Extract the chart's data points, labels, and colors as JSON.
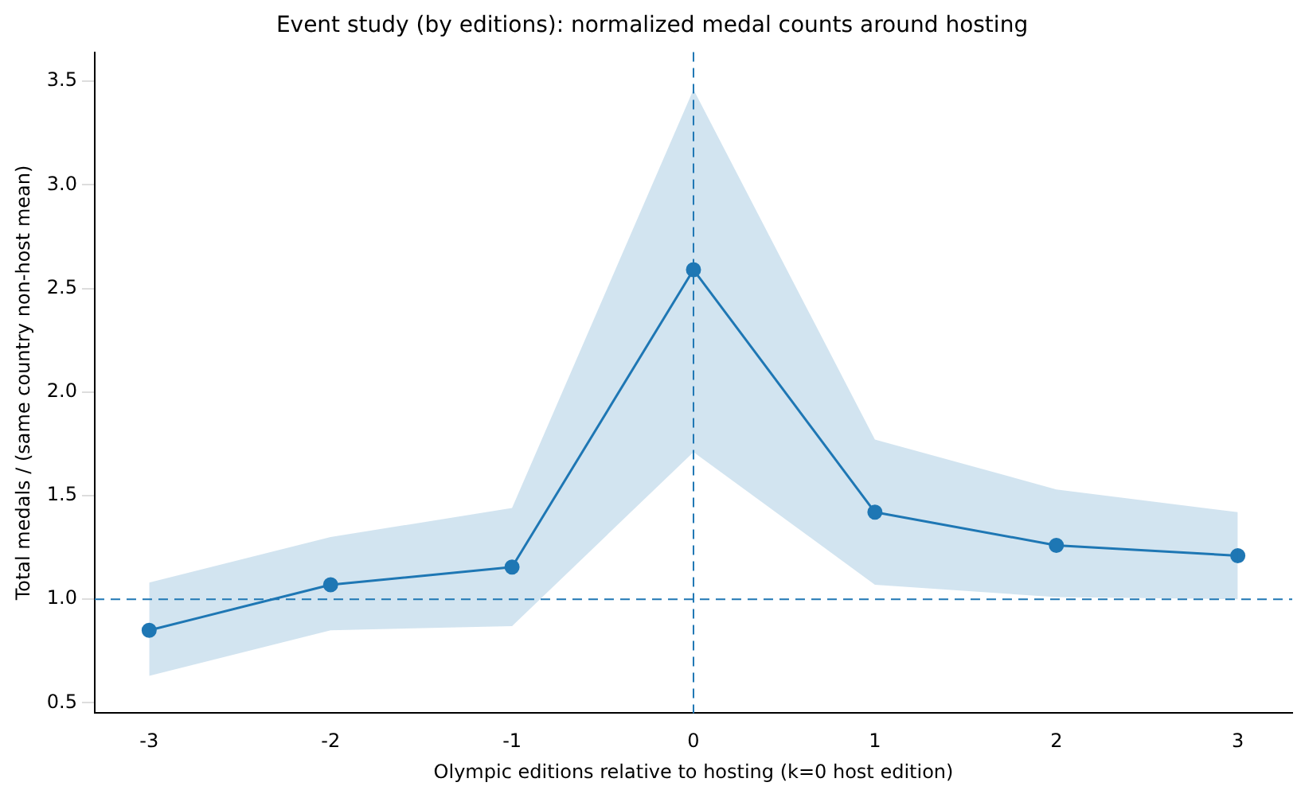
{
  "chart_data": {
    "type": "line",
    "title": "Event study (by editions): normalized medal counts around hosting",
    "xlabel": "Olympic editions relative to hosting (k=0 host edition)",
    "ylabel": "Total medals / (same country non-host mean)",
    "x": [
      -3,
      -2,
      -1,
      0,
      1,
      2,
      3
    ],
    "series": [
      {
        "color": "#1f77b4",
        "values": [
          0.85,
          1.07,
          1.155,
          2.59,
          1.42,
          1.26,
          1.21
        ],
        "lower": [
          0.63,
          0.85,
          0.87,
          1.71,
          1.07,
          1.01,
          1.0
        ],
        "upper": [
          1.08,
          1.3,
          1.44,
          3.46,
          1.77,
          1.53,
          1.42
        ]
      }
    ],
    "xlim": [
      -3.3,
      3.3
    ],
    "xticks": [
      -3,
      -2,
      -1,
      0,
      1,
      2,
      3
    ],
    "ylim": [
      0.45,
      3.64
    ],
    "yticks": [
      0.5,
      {
        "value": 1,
        "label": "1.0"
      },
      1.5,
      {
        "value": 2,
        "label": "2.0"
      },
      2.5,
      {
        "value": 3,
        "label": "3.0"
      },
      3.5
    ],
    "ref_lines": [
      {
        "axis": "y",
        "value": 1,
        "color": "#1f77b4",
        "line_style": "dashed"
      },
      {
        "axis": "x",
        "value": 0,
        "color": "#1f77b4",
        "line_style": "dashed"
      }
    ],
    "grid": false,
    "legend": false,
    "marker": "circle",
    "line_style": "solid"
  }
}
